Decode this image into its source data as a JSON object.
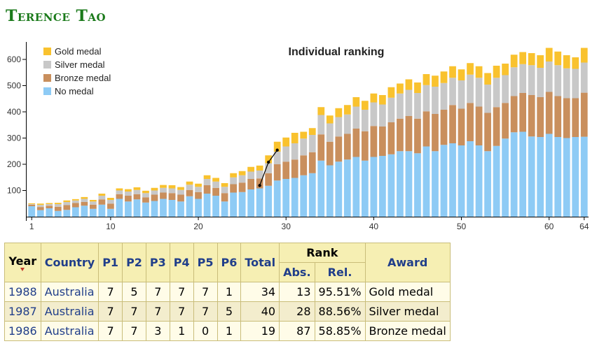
{
  "page_title": "Terence Tao",
  "chart_data": {
    "type": "bar",
    "stacked": true,
    "title": "Individual ranking",
    "xlabel": "",
    "ylabel": "",
    "ylim": [
      0,
      660
    ],
    "y_ticks": [
      100,
      200,
      300,
      400,
      500,
      600
    ],
    "x_ticks": [
      1,
      10,
      20,
      30,
      40,
      50,
      60,
      64
    ],
    "grid": false,
    "legend_position": "top-left",
    "legend": [
      "Gold medal",
      "Silver medal",
      "Bronze medal",
      "No medal"
    ],
    "colors": {
      "gold": "#f9c22e",
      "silver": "#c8c8c8",
      "bronze": "#c98f5d",
      "none": "#8ecbf5"
    },
    "categories": [
      1,
      2,
      3,
      4,
      5,
      6,
      7,
      8,
      9,
      10,
      11,
      12,
      13,
      14,
      15,
      16,
      17,
      18,
      19,
      20,
      21,
      22,
      23,
      24,
      25,
      26,
      27,
      28,
      29,
      30,
      31,
      32,
      33,
      34,
      35,
      36,
      37,
      38,
      39,
      40,
      41,
      42,
      43,
      44,
      45,
      46,
      47,
      48,
      49,
      50,
      51,
      52,
      53,
      54,
      55,
      56,
      57,
      58,
      59,
      60,
      61,
      62,
      63,
      64
    ],
    "series": [
      {
        "name": "No medal",
        "values": [
          40,
          25,
          32,
          22,
          26,
          36,
          42,
          30,
          46,
          30,
          68,
          58,
          66,
          54,
          60,
          68,
          64,
          58,
          78,
          68,
          88,
          80,
          58,
          92,
          94,
          104,
          108,
          118,
          138,
          144,
          148,
          158,
          166,
          214,
          196,
          210,
          218,
          228,
          214,
          228,
          232,
          238,
          250,
          250,
          242,
          268,
          250,
          274,
          280,
          272,
          288,
          272,
          250,
          270,
          298,
          322,
          324,
          306,
          304,
          316,
          304,
          300,
          304,
          305
        ]
      },
      {
        "name": "Bronze medal",
        "values": [
          6,
          12,
          10,
          16,
          18,
          16,
          14,
          16,
          20,
          20,
          18,
          22,
          20,
          20,
          24,
          24,
          26,
          26,
          24,
          26,
          32,
          30,
          32,
          32,
          36,
          40,
          38,
          48,
          62,
          66,
          70,
          76,
          80,
          100,
          90,
          96,
          98,
          108,
          112,
          118,
          112,
          122,
          124,
          134,
          132,
          134,
          142,
          134,
          146,
          140,
          146,
          148,
          146,
          148,
          136,
          138,
          148,
          158,
          152,
          160,
          156,
          152,
          148,
          168
        ]
      },
      {
        "name": "Silver medal",
        "values": [
          2,
          8,
          6,
          10,
          12,
          10,
          12,
          12,
          14,
          14,
          14,
          16,
          16,
          16,
          16,
          18,
          18,
          18,
          20,
          20,
          24,
          24,
          24,
          26,
          28,
          28,
          30,
          38,
          48,
          58,
          62,
          64,
          66,
          74,
          70,
          74,
          74,
          84,
          82,
          90,
          84,
          94,
          96,
          100,
          98,
          100,
          104,
          102,
          104,
          108,
          108,
          110,
          108,
          112,
          106,
          110,
          110,
          114,
          112,
          116,
          118,
          114,
          112,
          115
        ]
      },
      {
        "name": "Gold medal",
        "values": [
          3,
          5,
          4,
          5,
          6,
          5,
          7,
          6,
          8,
          8,
          8,
          9,
          10,
          9,
          10,
          11,
          12,
          11,
          12,
          12,
          14,
          14,
          14,
          16,
          16,
          18,
          19,
          30,
          38,
          34,
          40,
          26,
          26,
          30,
          30,
          34,
          36,
          36,
          34,
          34,
          36,
          40,
          38,
          40,
          40,
          42,
          42,
          44,
          44,
          42,
          44,
          44,
          44,
          46,
          44,
          48,
          46,
          46,
          48,
          52,
          52,
          50,
          44,
          56
        ]
      }
    ],
    "annotations": {
      "highlight_line": {
        "x": [
          27,
          28,
          29
        ],
        "y": [
          119,
          208,
          254
        ]
      }
    }
  },
  "table": {
    "headers": {
      "year": "Year",
      "country": "Country",
      "p1": "P1",
      "p2": "P2",
      "p3": "P3",
      "p4": "P4",
      "p5": "P5",
      "p6": "P6",
      "total": "Total",
      "rank": "Rank",
      "abs": "Abs.",
      "rel": "Rel.",
      "award": "Award"
    },
    "rows": [
      {
        "year": "1988",
        "country": "Australia",
        "p1": "7",
        "p2": "5",
        "p3": "7",
        "p4": "7",
        "p5": "7",
        "p6": "1",
        "total": "34",
        "abs": "13",
        "rel": "95.51%",
        "award": "Gold medal"
      },
      {
        "year": "1987",
        "country": "Australia",
        "p1": "7",
        "p2": "7",
        "p3": "7",
        "p4": "7",
        "p5": "7",
        "p6": "5",
        "total": "40",
        "abs": "28",
        "rel": "88.56%",
        "award": "Silver medal"
      },
      {
        "year": "1986",
        "country": "Australia",
        "p1": "7",
        "p2": "7",
        "p3": "3",
        "p4": "1",
        "p5": "0",
        "p6": "1",
        "total": "19",
        "abs": "87",
        "rel": "58.85%",
        "award": "Bronze medal"
      }
    ]
  }
}
